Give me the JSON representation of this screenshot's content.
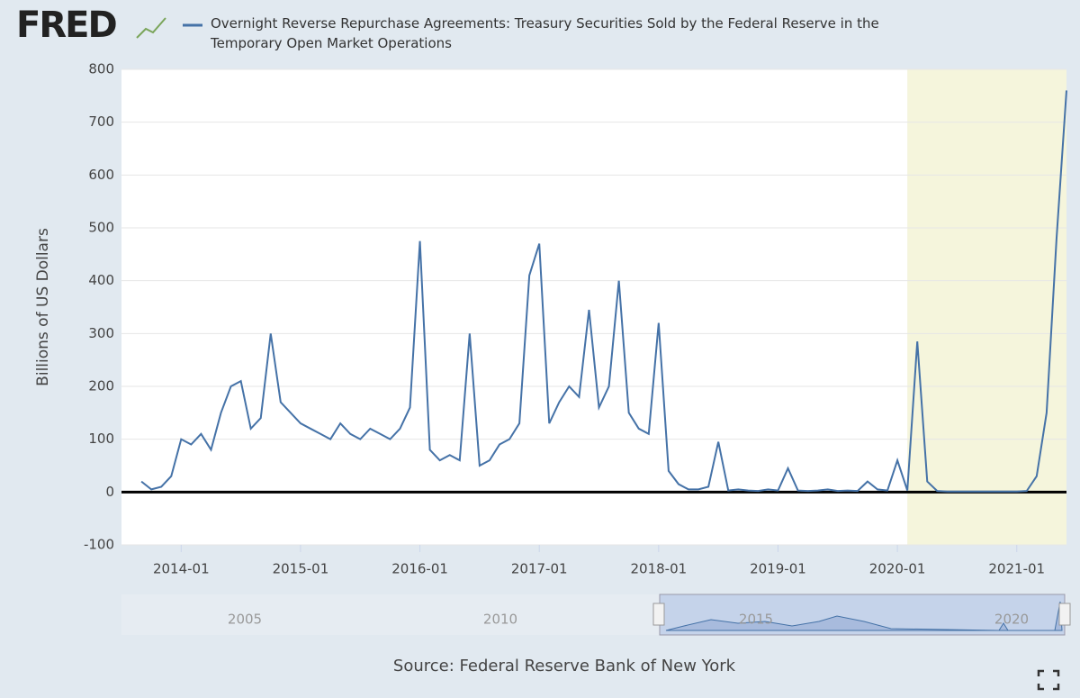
{
  "logo": "FRED",
  "chart_data": {
    "type": "line",
    "series": [
      {
        "name": "Overnight Reverse Repurchase Agreements: Treasury Securities Sold by the Federal Reserve in the Temporary Open Market Operations",
        "color": "#4572a7",
        "values": [
          20,
          5,
          10,
          30,
          100,
          90,
          110,
          80,
          150,
          200,
          210,
          120,
          140,
          300,
          170,
          150,
          130,
          120,
          110,
          100,
          130,
          110,
          100,
          120,
          110,
          100,
          120,
          160,
          475,
          80,
          60,
          70,
          60,
          300,
          50,
          60,
          90,
          100,
          130,
          410,
          470,
          130,
          170,
          200,
          180,
          345,
          160,
          200,
          400,
          150,
          120,
          110,
          320,
          40,
          15,
          5,
          5,
          10,
          95,
          3,
          5,
          3,
          2,
          5,
          3,
          45,
          3,
          2,
          3,
          5,
          2,
          3,
          2,
          20,
          5,
          3,
          60,
          3,
          285,
          20,
          2,
          1,
          1,
          1,
          1,
          1,
          1,
          1,
          1,
          2,
          30,
          150,
          480,
          760
        ]
      }
    ],
    "x": [
      "2013-09",
      "2013-10",
      "2013-11",
      "2013-12",
      "2014-01",
      "2014-02",
      "2014-03",
      "2014-04",
      "2014-05",
      "2014-06",
      "2014-07",
      "2014-08",
      "2014-09",
      "2014-10",
      "2014-11",
      "2014-12",
      "2015-01",
      "2015-02",
      "2015-03",
      "2015-04",
      "2015-05",
      "2015-06",
      "2015-07",
      "2015-08",
      "2015-09",
      "2015-10",
      "2015-11",
      "2015-12",
      "2016-01",
      "2016-02",
      "2016-03",
      "2016-04",
      "2016-05",
      "2016-06",
      "2016-07",
      "2016-08",
      "2016-09",
      "2016-10",
      "2016-11",
      "2016-12",
      "2017-01",
      "2017-02",
      "2017-03",
      "2017-04",
      "2017-05",
      "2017-06",
      "2017-07",
      "2017-08",
      "2017-09",
      "2017-10",
      "2017-11",
      "2017-12",
      "2018-01",
      "2018-02",
      "2018-03",
      "2018-04",
      "2018-05",
      "2018-06",
      "2018-07",
      "2018-08",
      "2018-09",
      "2018-10",
      "2018-11",
      "2018-12",
      "2019-01",
      "2019-02",
      "2019-03",
      "2019-04",
      "2019-05",
      "2019-06",
      "2019-07",
      "2019-08",
      "2019-09",
      "2019-10",
      "2019-11",
      "2019-12",
      "2020-01",
      "2020-02",
      "2020-03",
      "2020-04",
      "2020-05",
      "2020-06",
      "2020-07",
      "2020-08",
      "2020-09",
      "2020-10",
      "2020-11",
      "2020-12",
      "2021-01",
      "2021-02",
      "2021-03",
      "2021-04",
      "2021-05",
      "2021-06"
    ],
    "xlim": [
      "2013-07",
      "2021-06"
    ],
    "xticks": [
      "2014-01",
      "2015-01",
      "2016-01",
      "2017-01",
      "2018-01",
      "2019-01",
      "2020-01",
      "2021-01"
    ],
    "ylim": [
      -100,
      800
    ],
    "yticks": [
      -100,
      0,
      100,
      200,
      300,
      400,
      500,
      600,
      700,
      800
    ],
    "y_label": "Billions of US Dollars",
    "grid": true,
    "shading": {
      "start": "2020-02",
      "end": "2021-06",
      "color": "#f5f5dc"
    },
    "source": "Source: Federal Reserve Bank of New York",
    "navigator_labels": [
      "2005",
      "2010",
      "2015",
      "2020"
    ]
  }
}
